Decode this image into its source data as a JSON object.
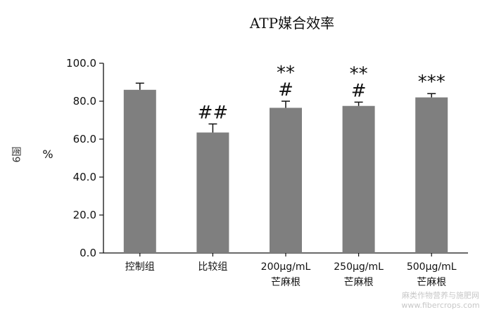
{
  "figure_label": "图9",
  "watermark": [
    "麻类作物营养与施肥网",
    "www.fibercrops.com"
  ],
  "chart_data": {
    "type": "bar",
    "title": "ATP媒合效率",
    "ylabel": "%",
    "xlabel": "",
    "ylim": [
      0,
      100
    ],
    "yticks": [
      "0.0",
      "20.0",
      "40.0",
      "60.0",
      "80.0",
      "100.0"
    ],
    "categories": [
      [
        "控制组"
      ],
      [
        "比较组"
      ],
      [
        "200μg/mL",
        "芒麻根"
      ],
      [
        "250μg/mL",
        "芒麻根"
      ],
      [
        "500μg/mL",
        "芒麻根"
      ]
    ],
    "values": [
      86,
      63.5,
      76.5,
      77.5,
      82
    ],
    "errors": [
      3.5,
      4.5,
      3.5,
      2,
      2
    ],
    "significance": [
      [],
      [
        "##"
      ],
      [
        "**",
        "#"
      ],
      [
        "**",
        "#"
      ],
      [
        "***"
      ]
    ],
    "bar_color": "#7f7f7f",
    "grid": false
  }
}
